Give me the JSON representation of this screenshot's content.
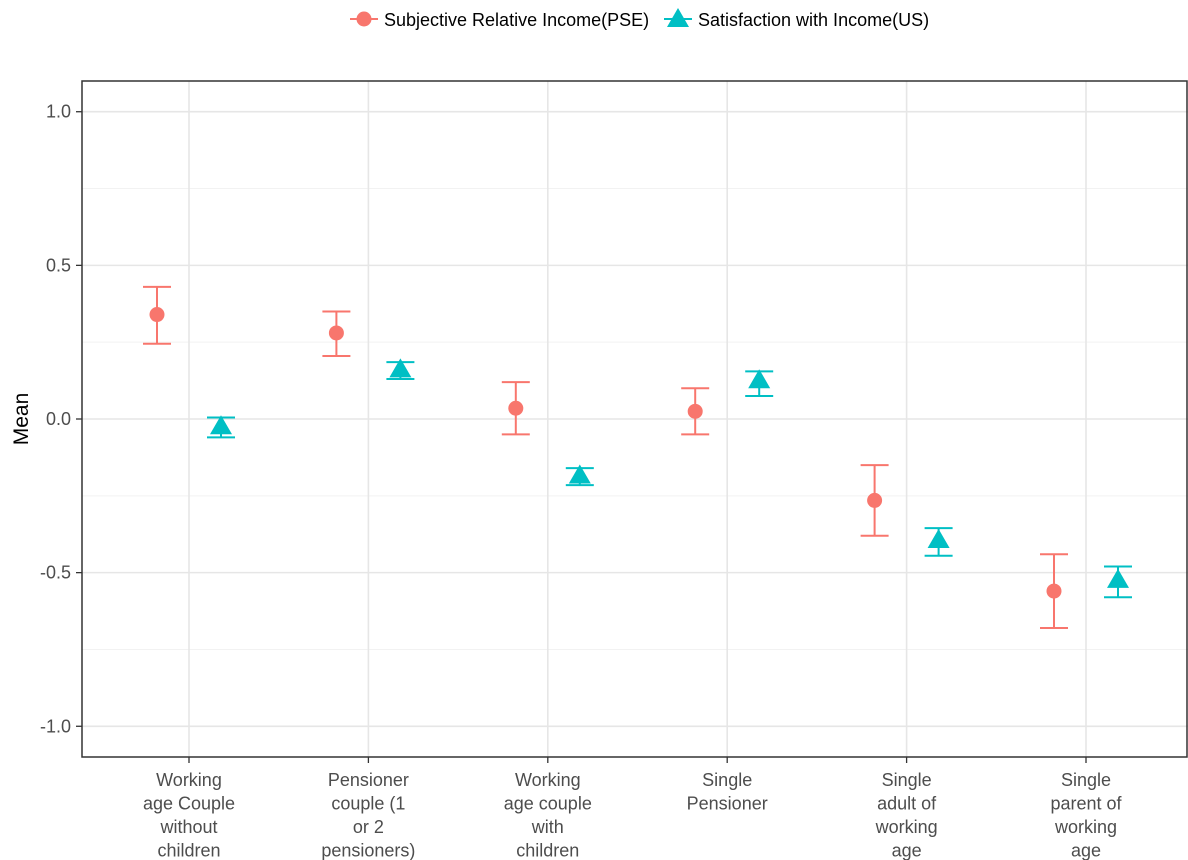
{
  "chart_data": {
    "type": "errorbar",
    "title": "",
    "xlabel": "",
    "ylabel": "Mean",
    "ylim": [
      -1.1,
      1.1
    ],
    "yticks": [
      1.0,
      0.5,
      0.0,
      -0.5,
      -1.0
    ],
    "ytick_labels": [
      "1.0",
      "0.5",
      "0.0",
      "-0.5",
      "-1.0"
    ],
    "grid": true,
    "legend_position": "top",
    "categories": [
      "Working age Couple without children",
      "Pensioner couple (1 or 2 pensioners)",
      "Working age couple with children",
      "Single Pensioner",
      "Single adult of working age",
      "Single parent of working age"
    ],
    "category_lines": [
      [
        "Working",
        "age Couple",
        "without",
        "children"
      ],
      [
        "Pensioner",
        "couple (1",
        "or 2",
        "pensioners)"
      ],
      [
        "Working",
        "age couple",
        "with",
        "children"
      ],
      [
        "Single",
        "Pensioner"
      ],
      [
        "Single",
        "adult of",
        "working",
        "age"
      ],
      [
        "Single",
        "parent of",
        "working",
        "age"
      ]
    ],
    "series": [
      {
        "name": "Subjective Relative Income(PSE)",
        "marker": "circle",
        "color": "#F8766D",
        "values": [
          0.34,
          0.28,
          0.035,
          0.025,
          -0.265,
          -0.56
        ],
        "lower": [
          0.245,
          0.205,
          -0.05,
          -0.05,
          -0.38,
          -0.68
        ],
        "upper": [
          0.43,
          0.35,
          0.12,
          0.1,
          -0.15,
          -0.44
        ]
      },
      {
        "name": "Satisfaction with Income(US)",
        "marker": "triangle",
        "color": "#00BFC4",
        "values": [
          -0.025,
          0.16,
          -0.185,
          0.125,
          -0.395,
          -0.525
        ],
        "lower": [
          -0.06,
          0.13,
          -0.215,
          0.075,
          -0.445,
          -0.58
        ],
        "upper": [
          0.005,
          0.185,
          -0.16,
          0.155,
          -0.355,
          -0.48
        ]
      }
    ]
  }
}
